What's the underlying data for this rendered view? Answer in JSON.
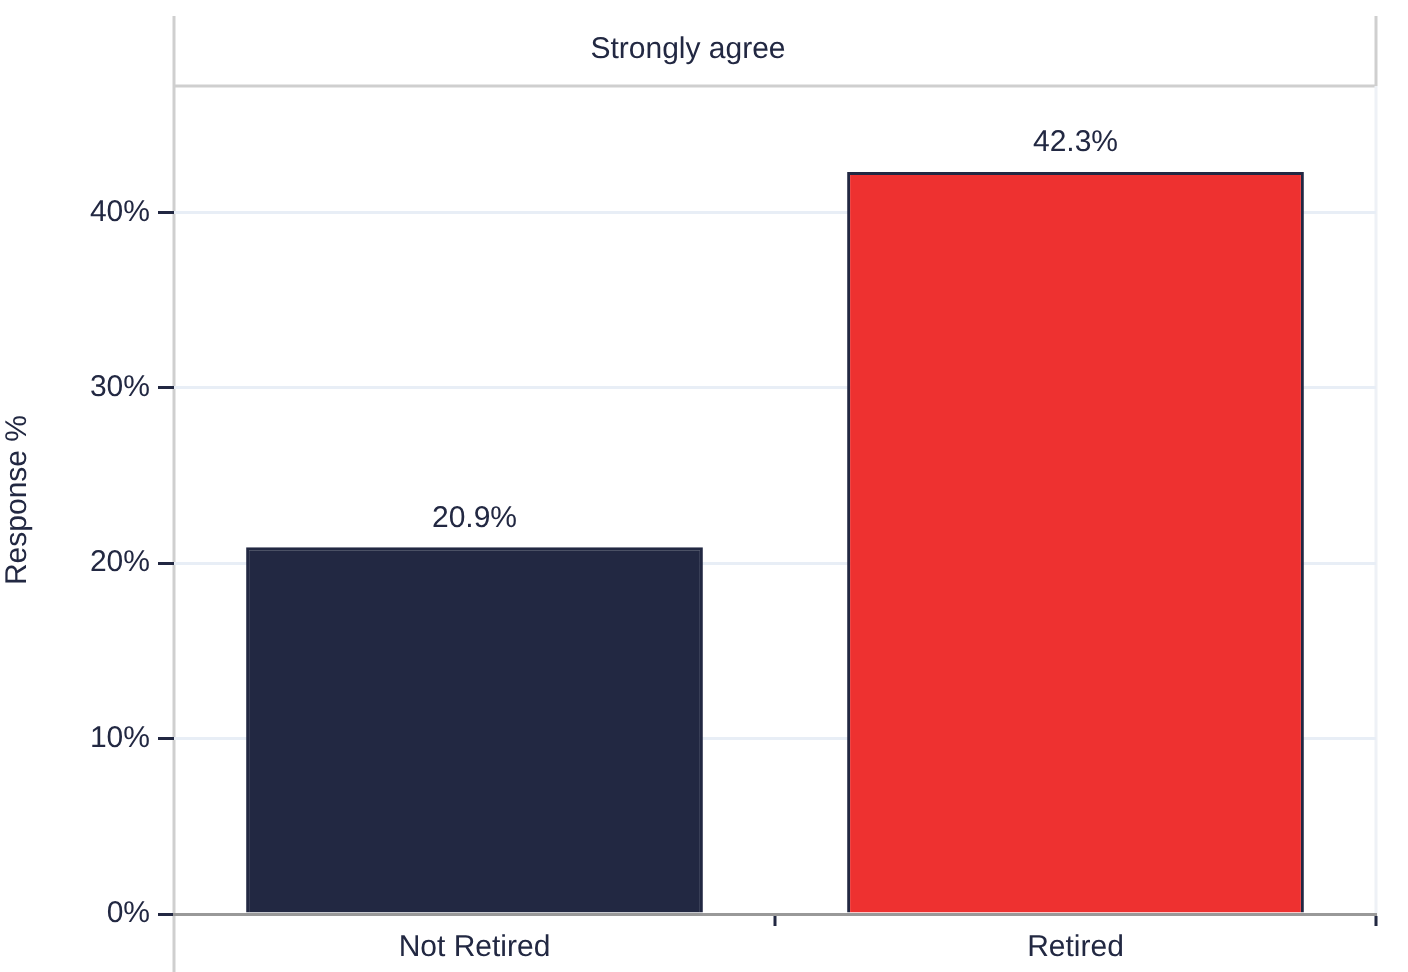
{
  "chart_data": {
    "type": "bar",
    "title": "Strongly agree",
    "ylabel": "Response %",
    "categories": [
      "Not Retired",
      "Retired"
    ],
    "values": [
      20.9,
      42.3
    ],
    "colors": [
      "#222842",
      "#ee3130"
    ],
    "value_labels": [
      "20.9%",
      "42.3%"
    ],
    "ylim": [
      0,
      47.2
    ],
    "yticks": [
      {
        "value": 0,
        "label": "0%"
      },
      {
        "value": 10,
        "label": "10%"
      },
      {
        "value": 20,
        "label": "20%"
      },
      {
        "value": 30,
        "label": "30%"
      },
      {
        "value": 40,
        "label": "40%"
      }
    ],
    "grid": "y"
  }
}
